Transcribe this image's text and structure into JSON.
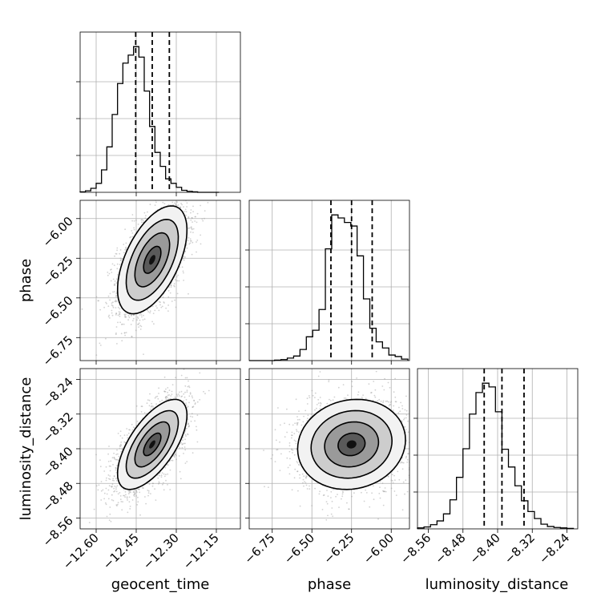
{
  "chart_data": {
    "type": "corner",
    "parameters": [
      {
        "name": "geocent_time",
        "range": [
          -12.66,
          -12.06
        ],
        "ticks": [
          -12.6,
          -12.45,
          -12.3,
          -12.15
        ],
        "tick_labels": [
          "−12.60",
          "−12.45",
          "−12.30",
          "−12.15"
        ],
        "quantiles": [
          -12.452,
          -12.39,
          -12.326
        ],
        "histogram": {
          "bin_edges": [
            -12.66,
            -12.64,
            -12.62,
            -12.6,
            -12.58,
            -12.56,
            -12.54,
            -12.52,
            -12.5,
            -12.48,
            -12.46,
            -12.44,
            -12.42,
            -12.4,
            -12.38,
            -12.36,
            -12.34,
            -12.32,
            -12.3,
            -12.28,
            -12.26,
            -12.24,
            -12.22,
            -12.2,
            -12.18,
            -12.16,
            -12.14
          ],
          "counts": [
            1,
            3,
            8,
            18,
            45,
            91,
            156,
            218,
            259,
            275,
            292,
            271,
            203,
            132,
            80,
            52,
            27,
            18,
            10,
            4,
            2,
            1,
            0,
            0,
            0,
            0
          ]
        }
      },
      {
        "name": "phase",
        "range": [
          -6.895,
          -5.885
        ],
        "ticks": [
          -6.75,
          -6.5,
          -6.25,
          -6.0
        ],
        "tick_labels": [
          "−6.75",
          "−6.50",
          "−6.25",
          "−6.00"
        ],
        "quantiles": [
          -6.38,
          -6.25,
          -6.12
        ],
        "histogram": {
          "bin_edges": [
            -6.895,
            -6.855,
            -6.815,
            -6.775,
            -6.735,
            -6.695,
            -6.655,
            -6.615,
            -6.575,
            -6.535,
            -6.495,
            -6.455,
            -6.415,
            -6.375,
            -6.335,
            -6.295,
            -6.255,
            -6.215,
            -6.175,
            -6.135,
            -6.095,
            -6.055,
            -6.015,
            -5.975,
            -5.935,
            -5.895
          ],
          "counts": [
            0,
            0,
            0,
            0,
            1,
            2,
            5,
            9,
            22,
            47,
            60,
            101,
            221,
            288,
            282,
            273,
            266,
            207,
            122,
            64,
            37,
            25,
            11,
            8,
            3
          ]
        }
      },
      {
        "name": "luminosity_distance",
        "range": [
          -8.585,
          -8.215
        ],
        "ticks": [
          -8.56,
          -8.48,
          -8.4,
          -8.32,
          -8.24
        ],
        "tick_labels": [
          "−8.56",
          "−8.48",
          "−8.40",
          "−8.32",
          "−8.24"
        ],
        "quantiles": [
          -8.431,
          -8.39,
          -8.339
        ],
        "histogram": {
          "bin_edges": [
            -8.585,
            -8.57,
            -8.555,
            -8.54,
            -8.525,
            -8.51,
            -8.495,
            -8.48,
            -8.465,
            -8.45,
            -8.435,
            -8.42,
            -8.405,
            -8.39,
            -8.375,
            -8.36,
            -8.345,
            -8.33,
            -8.315,
            -8.3,
            -8.285,
            -8.27,
            -8.255,
            -8.24,
            -8.225
          ],
          "counts": [
            2,
            4,
            9,
            17,
            32,
            62,
            110,
            171,
            245,
            291,
            311,
            303,
            250,
            170,
            132,
            92,
            60,
            37,
            22,
            10,
            5,
            3,
            2,
            1
          ]
        }
      }
    ],
    "pairs": [
      {
        "x": "geocent_time",
        "y": "phase",
        "center": [
          -12.39,
          -6.26
        ],
        "sigma": [
          0.065,
          0.17
        ],
        "correlation": 0.55
      },
      {
        "x": "geocent_time",
        "y": "luminosity_distance",
        "center": [
          -12.39,
          -8.39
        ],
        "sigma": [
          0.065,
          0.052
        ],
        "correlation": 0.65
      },
      {
        "x": "phase",
        "y": "luminosity_distance",
        "center": [
          -6.25,
          -8.39
        ],
        "sigma": [
          0.17,
          0.052
        ],
        "correlation": 0.1
      }
    ],
    "contour_levels": [
      "0.5σ",
      "1σ",
      "1.5σ",
      "2σ"
    ],
    "grid": true,
    "colors": {
      "points": "#9a9a9a",
      "contour": "#000000",
      "hist": "#000000"
    }
  }
}
